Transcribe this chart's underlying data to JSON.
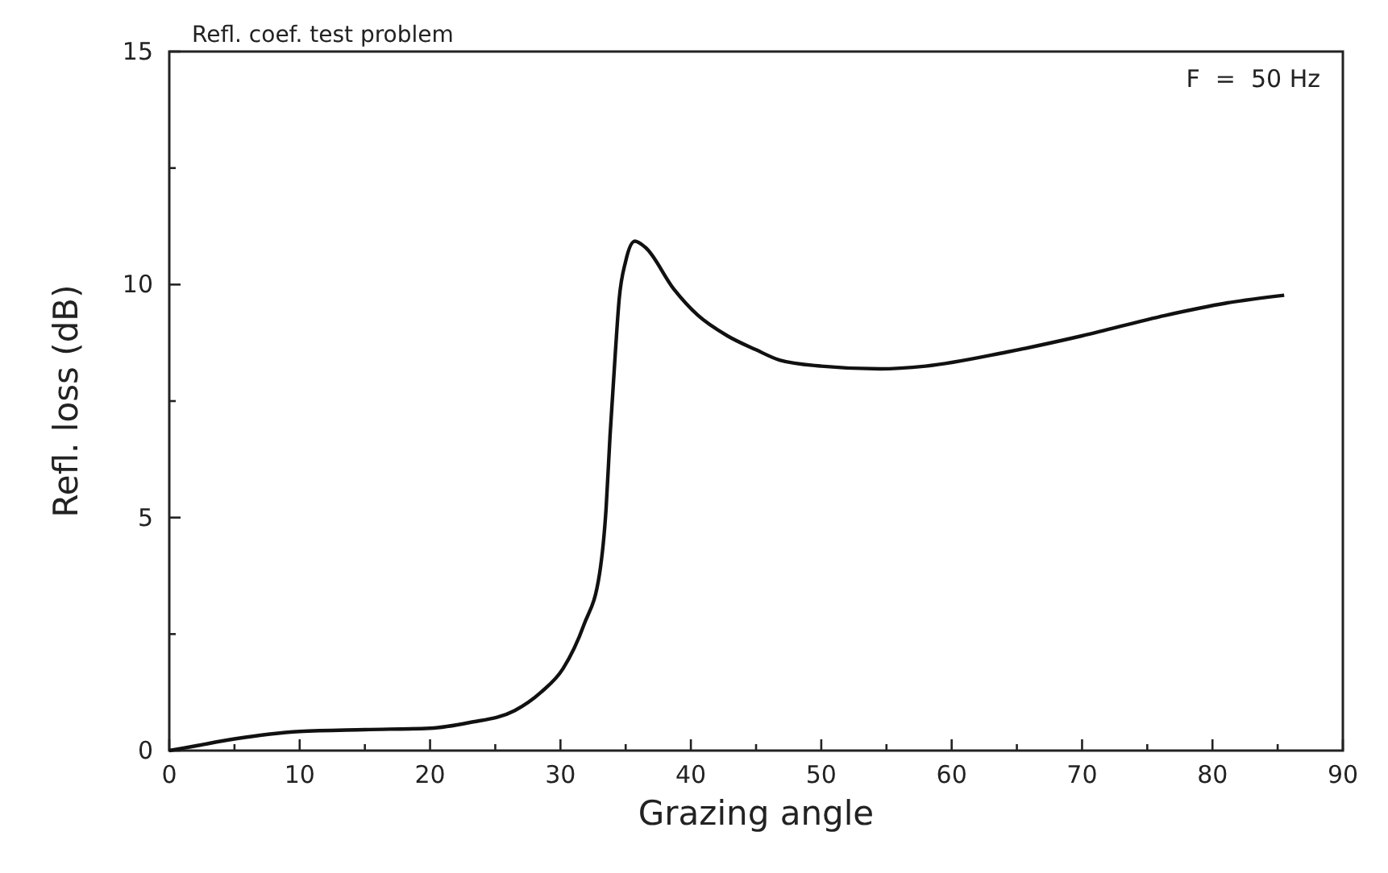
{
  "chart_data": {
    "type": "line",
    "title": "Refl. coef. test problem",
    "xlabel": "Grazing angle",
    "ylabel": "Refl. loss (dB)",
    "annotations": [
      "F  =  50 Hz"
    ],
    "series": [
      {
        "color": "#111111",
        "x": [
          0,
          2,
          5,
          10,
          15,
          20,
          23,
          26.5,
          28.5,
          30.2,
          31.8,
          33,
          33.5,
          33.8,
          34.2,
          34.5,
          35,
          35.7,
          36.5,
          38.7,
          40.5,
          42.8,
          45,
          46.8,
          50,
          54.5,
          58,
          64.2,
          70,
          76.4,
          81,
          85.5
        ],
        "values": [
          0,
          0.1,
          0.25,
          0.41,
          0.45,
          0.48,
          0.6,
          0.86,
          1.25,
          1.76,
          2.7,
          3.8,
          5.2,
          6.75,
          8.5,
          9.68,
          10.5,
          10.93,
          10.8,
          9.9,
          9.35,
          8.9,
          8.6,
          8.38,
          8.25,
          8.19,
          8.25,
          8.55,
          8.9,
          9.34,
          9.6,
          9.77
        ]
      }
    ],
    "xlim": [
      0,
      90
    ],
    "ylim": [
      0,
      15
    ],
    "xticks": [
      0,
      {
        "value": 5,
        "label": null
      },
      10,
      {
        "value": 15,
        "label": null
      },
      20,
      {
        "value": 25,
        "label": null
      },
      30,
      {
        "value": 35,
        "label": null
      },
      40,
      {
        "value": 45,
        "label": null
      },
      50,
      {
        "value": 55,
        "label": null
      },
      60,
      {
        "value": 65,
        "label": null
      },
      70,
      {
        "value": 75,
        "label": null
      },
      80,
      {
        "value": 85,
        "label": null
      },
      90
    ],
    "yticks": [
      0,
      {
        "value": 2.5,
        "label": null
      },
      5,
      {
        "value": 7.5,
        "label": null
      },
      10,
      {
        "value": 12.5,
        "label": null
      },
      15
    ],
    "marker": "none",
    "line_style": "solid"
  }
}
